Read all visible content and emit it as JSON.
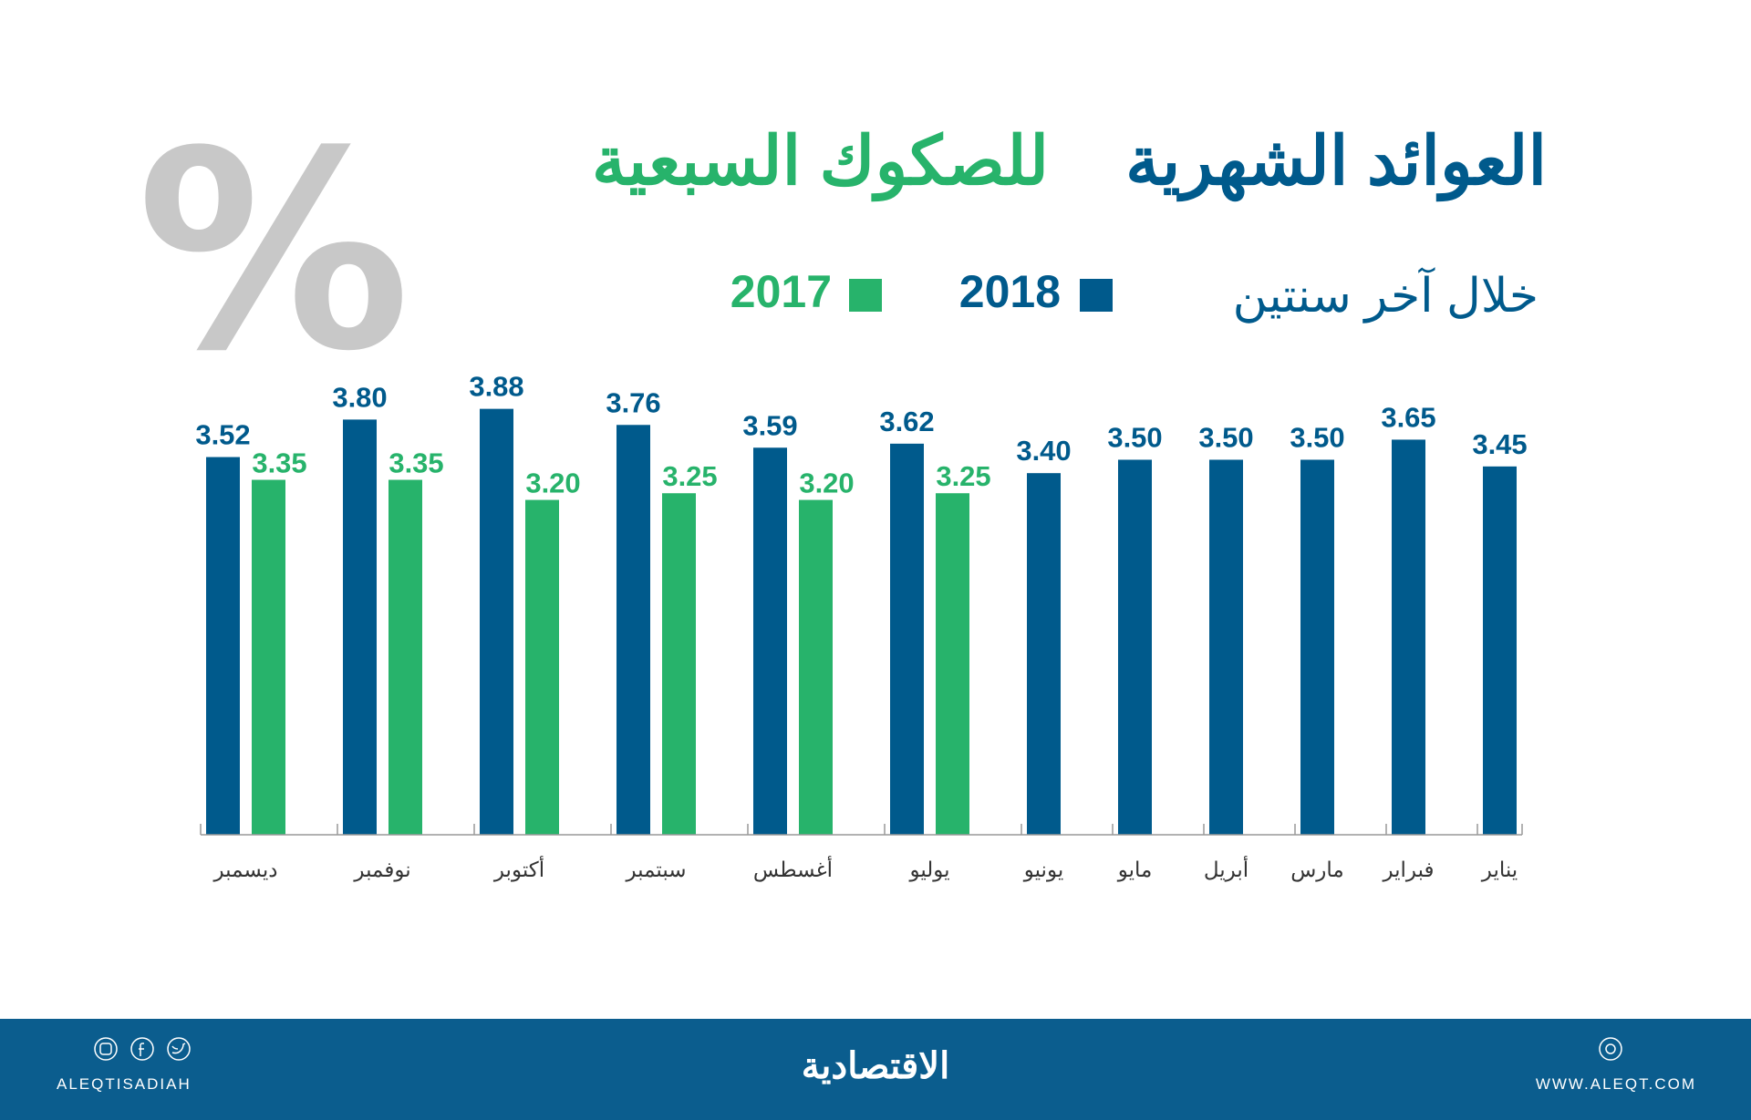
{
  "chart_data": {
    "type": "bar",
    "title": "العوائد الشهرية",
    "title_highlight": "للصكوك السبعية",
    "subtitle": "خلال آخر سنتين",
    "unit_symbol": "%",
    "categories": [
      "يناير",
      "فبراير",
      "مارس",
      "أبريل",
      "مايو",
      "يونيو",
      "يوليو",
      "أغسطس",
      "سبتمبر",
      "أكتوبر",
      "نوفمبر",
      "ديسمبر"
    ],
    "ylim": [
      0.7,
      4.0
    ],
    "series": [
      {
        "name": "2018",
        "color": "#005a8c",
        "values": [
          3.45,
          3.65,
          3.5,
          3.5,
          3.5,
          3.4,
          3.62,
          3.59,
          3.76,
          3.88,
          3.8,
          3.52
        ],
        "value_labels": [
          "3.45",
          "3.65",
          "3.50",
          "3.50",
          "3.50",
          "3.40",
          "3.62",
          "3.59",
          "3.76",
          "3.88",
          "3.80",
          "3.52"
        ]
      },
      {
        "name": "2017",
        "color": "#27b36b",
        "values": [
          null,
          null,
          null,
          null,
          null,
          null,
          3.25,
          3.2,
          3.25,
          3.2,
          3.35,
          3.35
        ],
        "value_labels": [
          null,
          null,
          null,
          null,
          null,
          null,
          "3.25",
          "3.20",
          "3.25",
          "3.20",
          "3.35",
          "3.35"
        ]
      }
    ]
  },
  "footer": {
    "social": "ALEQTISADIAH",
    "logo": "الاقتصادية",
    "website": "WWW.ALEQT.COM"
  }
}
